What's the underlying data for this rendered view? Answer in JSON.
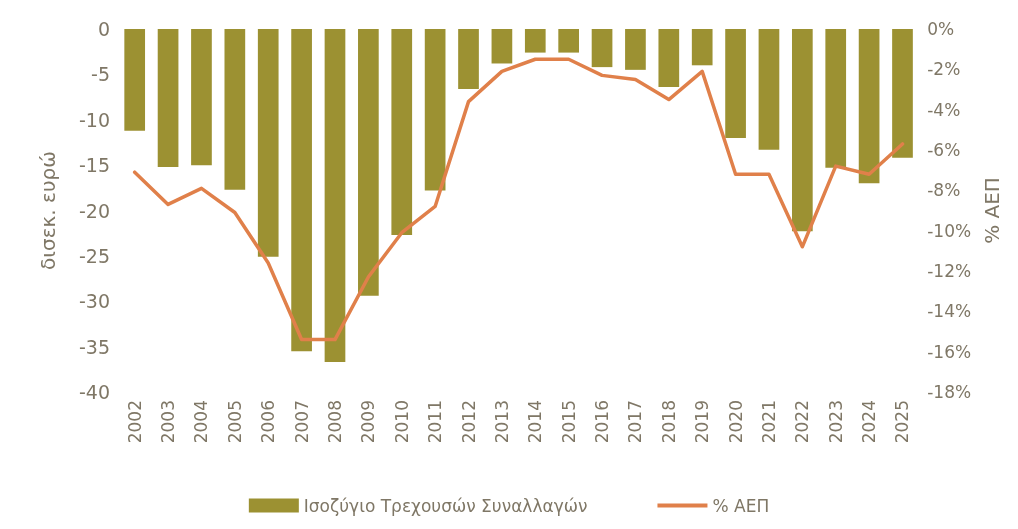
{
  "chart_data": {
    "type": "bar",
    "ylabel": "δισεκ. ευρώ",
    "y2label": "% ΑΕΠ",
    "categories": [
      "2002",
      "2003",
      "2004",
      "2005",
      "2006",
      "2007",
      "2008",
      "2009",
      "2010",
      "2011",
      "2012",
      "2013",
      "2014",
      "2015",
      "2016",
      "2017",
      "2018",
      "2019",
      "2020",
      "2021",
      "2022",
      "2023",
      "2024",
      "2025"
    ],
    "series": [
      {
        "name": "Ισοζύγιο Τρεχουσών Συναλλαγών",
        "color": "#9c9132",
        "values": [
          -11.2,
          -15.2,
          -15.0,
          -17.7,
          -25.1,
          -35.5,
          -36.7,
          -29.4,
          -22.7,
          -17.8,
          -6.6,
          -3.8,
          -2.6,
          -2.6,
          -4.2,
          -4.5,
          -6.4,
          -4.0,
          -12.0,
          -13.3,
          -22.3,
          -15.3,
          -17.0,
          -14.2
        ]
      },
      {
        "name": "% ΑΕΠ",
        "type": "line",
        "axis": "y2",
        "color": "#e0804a",
        "values": [
          -7.1,
          -8.7,
          -7.9,
          -9.1,
          -11.6,
          -15.4,
          -15.4,
          -12.3,
          -10.1,
          -8.8,
          -3.6,
          -2.1,
          -1.5,
          -1.5,
          -2.3,
          -2.5,
          -3.5,
          -2.1,
          -7.2,
          -7.2,
          -10.8,
          -6.8,
          -7.2,
          -5.7
        ]
      }
    ],
    "ylim": [
      -40,
      0
    ],
    "yticks": [
      -40,
      -35,
      -30,
      -25,
      -20,
      -15,
      -10,
      -5,
      0
    ],
    "y2lim": [
      -18,
      0
    ],
    "y2ticks": [
      {
        "value": -18,
        "label": "-18%"
      },
      {
        "value": -16,
        "label": "-16%"
      },
      {
        "value": -14,
        "label": "-14%"
      },
      {
        "value": -12,
        "label": "-12%"
      },
      {
        "value": -10,
        "label": "-10%"
      },
      {
        "value": -8,
        "label": "-8%"
      },
      {
        "value": -6,
        "label": "-6%"
      },
      {
        "value": -4,
        "label": "-4%"
      },
      {
        "value": -2,
        "label": "-2%"
      },
      {
        "value": 0,
        "label": "0%"
      }
    ],
    "grid": false,
    "legend": "bottom",
    "marker": "none",
    "line_style": "solid"
  }
}
